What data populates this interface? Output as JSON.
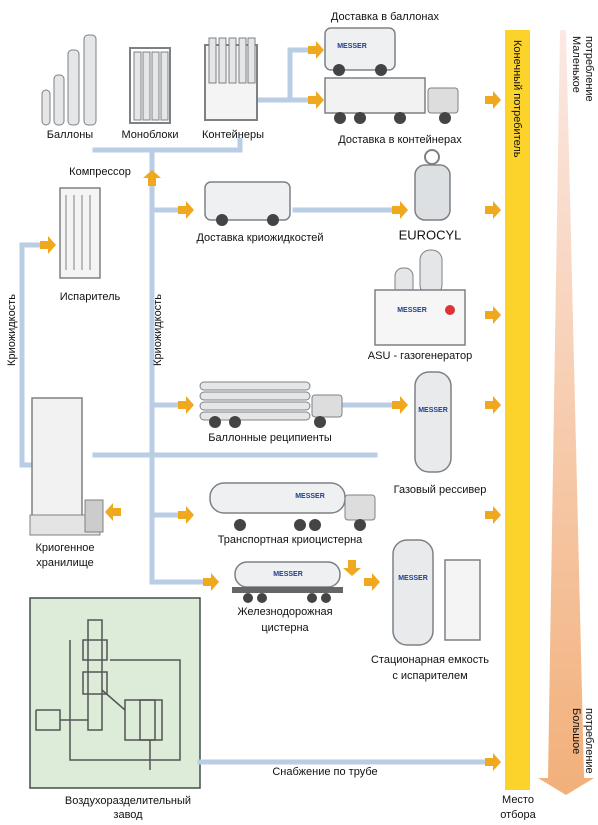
{
  "labels": {
    "cylinders": "Баллоны",
    "monoblocks": "Моноблоки",
    "containers": "Контейнеры",
    "delivery_cylinders": "Доставка в баллонах",
    "delivery_containers": "Доставка в контейнерах",
    "compressor": "Компрессор",
    "evaporator": "Испаритель",
    "cryo_liquid_left": "Криожидкость",
    "cryo_liquid_middle": "Криожидкость",
    "delivery_cryo": "Доставка криожидкостей",
    "eurocyl": "EUROCYL",
    "asu": "ASU - газогенератор",
    "bundles": "Баллонные реципиенты",
    "receiver": "Газовый рессивер",
    "storage": [
      "Криогенное",
      "хранилище"
    ],
    "transport_tank": "Транспортная криоцистерна",
    "rail_tank": [
      "Железнодорожная",
      "цистерна"
    ],
    "stationary_tank": [
      "Стационарная емкость",
      "с испарителем"
    ],
    "pipeline": "Снабжение по трубе",
    "plant": [
      "Воздухоразделительный",
      "завод"
    ],
    "offtake": [
      "Место",
      "отбора"
    ],
    "end_consumer": "Конечный потребитель",
    "small_consumption": [
      "Маленькое",
      "потребление"
    ],
    "large_consumption": [
      "Большое",
      "потребление"
    ],
    "logo": "MESSER"
  }
}
